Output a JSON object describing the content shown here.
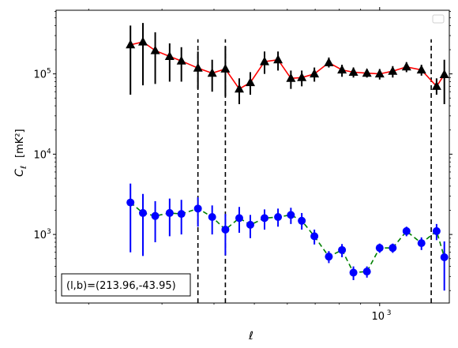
{
  "chart_data": {
    "type": "scatter",
    "xscale": "log",
    "yscale": "log",
    "xlim": [
      167,
      1470
    ],
    "ylim": [
      140,
      620000
    ],
    "xlabel": "ℓ",
    "ylabel_main": "C",
    "ylabel_sub": "ℓ",
    "ylabel_unit": "[mK²]",
    "xticks": [
      {
        "value": 1000,
        "base": "10",
        "exp": "3"
      }
    ],
    "yticks": [
      {
        "value": 1000,
        "base": "10",
        "exp": "3"
      },
      {
        "value": 10000,
        "base": "10",
        "exp": "4"
      },
      {
        "value": 100000,
        "base": "10",
        "exp": "5"
      }
    ],
    "vlines": [
      {
        "x": 366,
        "y_top": 270000
      },
      {
        "x": 426,
        "y_top": 270000
      },
      {
        "x": 1330,
        "y_top": 270000
      }
    ],
    "annotation": "(l,b)=(213.96,-43.95)",
    "legend": "top-right, empty",
    "series": [
      {
        "marker": "triangle",
        "marker_color": "#000000",
        "errorbar_color": "#000000",
        "line_color": "#ff0000",
        "line_style": "solid",
        "points": [
          {
            "x": 252,
            "y": 230000,
            "lo": 55000,
            "hi": 400000
          },
          {
            "x": 270,
            "y": 250000,
            "lo": 72000,
            "hi": 430000
          },
          {
            "x": 289,
            "y": 195000,
            "lo": 75000,
            "hi": 330000
          },
          {
            "x": 313,
            "y": 165000,
            "lo": 80000,
            "hi": 240000
          },
          {
            "x": 334,
            "y": 145000,
            "lo": 80000,
            "hi": 215000
          },
          {
            "x": 366,
            "y": 118000,
            "lo": 65000,
            "hi": 190000
          },
          {
            "x": 396,
            "y": 102000,
            "lo": 60000,
            "hi": 150000
          },
          {
            "x": 426,
            "y": 115000,
            "lo": 52000,
            "hi": 220000
          },
          {
            "x": 460,
            "y": 65000,
            "lo": 42000,
            "hi": 88000
          },
          {
            "x": 489,
            "y": 78000,
            "lo": 55000,
            "hi": 105000
          },
          {
            "x": 529,
            "y": 142000,
            "lo": 100000,
            "hi": 190000
          },
          {
            "x": 570,
            "y": 150000,
            "lo": 110000,
            "hi": 190000
          },
          {
            "x": 612,
            "y": 88000,
            "lo": 65000,
            "hi": 110000
          },
          {
            "x": 650,
            "y": 90000,
            "lo": 70000,
            "hi": 110000
          },
          {
            "x": 697,
            "y": 100000,
            "lo": 80000,
            "hi": 120000
          },
          {
            "x": 755,
            "y": 138000,
            "lo": 120000,
            "hi": 160000
          },
          {
            "x": 812,
            "y": 112000,
            "lo": 92000,
            "hi": 130000
          },
          {
            "x": 865,
            "y": 105000,
            "lo": 90000,
            "hi": 120000
          },
          {
            "x": 932,
            "y": 102000,
            "lo": 90000,
            "hi": 115000
          },
          {
            "x": 1000,
            "y": 100000,
            "lo": 85000,
            "hi": 115000
          },
          {
            "x": 1075,
            "y": 108000,
            "lo": 90000,
            "hi": 125000
          },
          {
            "x": 1160,
            "y": 122000,
            "lo": 105000,
            "hi": 140000
          },
          {
            "x": 1260,
            "y": 112000,
            "lo": 95000,
            "hi": 130000
          },
          {
            "x": 1370,
            "y": 70000,
            "lo": 55000,
            "hi": 88000
          },
          {
            "x": 1430,
            "y": 98000,
            "lo": 42000,
            "hi": 150000
          }
        ]
      },
      {
        "marker": "circle",
        "marker_color": "#0000ff",
        "errorbar_color": "#0000ff",
        "line_color": "#008000",
        "line_style": "dashed",
        "points": [
          {
            "x": 252,
            "y": 2500,
            "lo": 600,
            "hi": 4300
          },
          {
            "x": 270,
            "y": 1850,
            "lo": 540,
            "hi": 3200
          },
          {
            "x": 289,
            "y": 1700,
            "lo": 800,
            "hi": 2600
          },
          {
            "x": 313,
            "y": 1850,
            "lo": 950,
            "hi": 2800
          },
          {
            "x": 334,
            "y": 1800,
            "lo": 1000,
            "hi": 2700
          },
          {
            "x": 366,
            "y": 2100,
            "lo": 1250,
            "hi": 2900
          },
          {
            "x": 396,
            "y": 1650,
            "lo": 1000,
            "hi": 2300
          },
          {
            "x": 426,
            "y": 1150,
            "lo": 550,
            "hi": 1800
          },
          {
            "x": 460,
            "y": 1600,
            "lo": 1050,
            "hi": 2200
          },
          {
            "x": 489,
            "y": 1320,
            "lo": 900,
            "hi": 1750
          },
          {
            "x": 529,
            "y": 1600,
            "lo": 1150,
            "hi": 2050
          },
          {
            "x": 570,
            "y": 1650,
            "lo": 1250,
            "hi": 2100
          },
          {
            "x": 612,
            "y": 1750,
            "lo": 1350,
            "hi": 2150
          },
          {
            "x": 650,
            "y": 1480,
            "lo": 1150,
            "hi": 1850
          },
          {
            "x": 697,
            "y": 950,
            "lo": 750,
            "hi": 1150
          },
          {
            "x": 755,
            "y": 530,
            "lo": 440,
            "hi": 620
          },
          {
            "x": 812,
            "y": 640,
            "lo": 520,
            "hi": 760
          },
          {
            "x": 865,
            "y": 335,
            "lo": 270,
            "hi": 400
          },
          {
            "x": 932,
            "y": 345,
            "lo": 290,
            "hi": 400
          },
          {
            "x": 1000,
            "y": 680,
            "lo": 590,
            "hi": 770
          },
          {
            "x": 1075,
            "y": 680,
            "lo": 590,
            "hi": 770
          },
          {
            "x": 1160,
            "y": 1100,
            "lo": 950,
            "hi": 1250
          },
          {
            "x": 1260,
            "y": 780,
            "lo": 640,
            "hi": 920
          },
          {
            "x": 1370,
            "y": 1100,
            "lo": 850,
            "hi": 1350
          },
          {
            "x": 1430,
            "y": 520,
            "lo": 200,
            "hi": 820
          }
        ]
      }
    ]
  }
}
